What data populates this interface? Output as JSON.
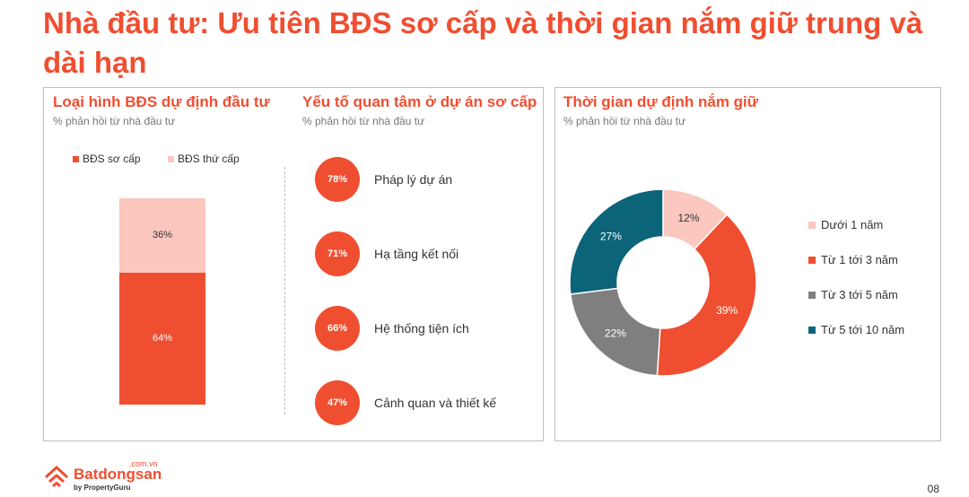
{
  "title": "Nhà đầu tư: Ưu tiên BĐS sơ cấp và thời gian nắm giữ trung và dài hạn",
  "left_panel": {
    "type_chart": {
      "title": "Loại hình BĐS dự định đầu tư",
      "subtitle": "% phản hồi từ nhà đầu tư"
    },
    "factors": {
      "title": "Yếu tố quan tâm ở dự án sơ cấp",
      "subtitle": "% phản hồi từ nhà đầu tư"
    }
  },
  "right_panel": {
    "title": "Thời gian dự định nắm giữ",
    "subtitle": "% phản hồi từ nhà đầu tư"
  },
  "footer": {
    "brand": "Batdongsan",
    "brand_suffix": ".com.vn",
    "byline": "by PropertyGuru",
    "page": "08"
  },
  "chart_data": [
    {
      "type": "bar",
      "stacked": true,
      "series": [
        {
          "name": "BĐS sơ cấp",
          "values": [
            64
          ],
          "labels": [
            "64%"
          ],
          "color": "#f04e30"
        },
        {
          "name": "BĐS thứ cấp",
          "values": [
            36
          ],
          "labels": [
            "36%"
          ],
          "color": "#fbc7bf"
        }
      ],
      "ylim": [
        0,
        100
      ],
      "legend": "top"
    },
    {
      "type": "table",
      "rows": [
        {
          "label": "Pháp lý dự án",
          "value": 78,
          "value_label": "78%"
        },
        {
          "label": "Hạ tầng kết nối",
          "value": 71,
          "value_label": "71%"
        },
        {
          "label": "Hệ thống tiện ích",
          "value": 66,
          "value_label": "66%"
        },
        {
          "label": "Cảnh quan và thiết kế",
          "value": 47,
          "value_label": "47%"
        }
      ],
      "color": "#f04e30"
    },
    {
      "type": "pie",
      "donut": true,
      "slices": [
        {
          "name": "Dưới 1 năm",
          "value": 12,
          "label": "12%",
          "color": "#fbc7bf",
          "label_color": "#333333"
        },
        {
          "name": "Từ 1 tới 3 năm",
          "value": 39,
          "label": "39%",
          "color": "#f04e30",
          "label_color": "#ffffff"
        },
        {
          "name": "Từ 3 tới 5 năm",
          "value": 22,
          "label": "22%",
          "color": "#7f7f7f",
          "label_color": "#ffffff"
        },
        {
          "name": "Từ 5 tới 10 năm",
          "value": 27,
          "label": "27%",
          "color": "#0b6478",
          "label_color": "#ffffff"
        }
      ],
      "legend": "right"
    }
  ]
}
